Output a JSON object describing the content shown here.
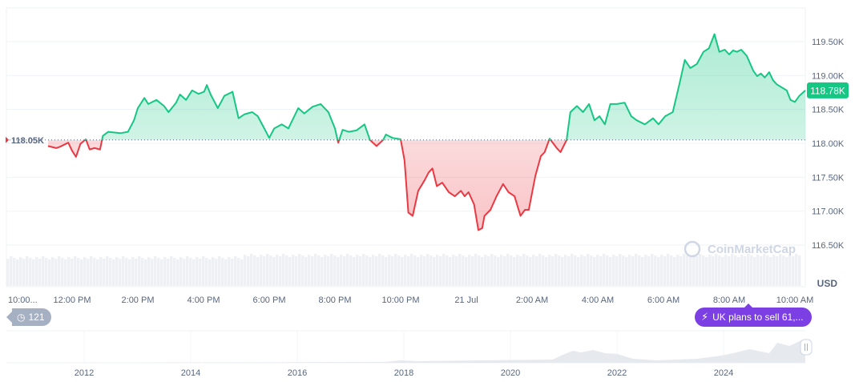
{
  "chart_data": {
    "type": "line",
    "currency": "USD",
    "baseline_label": "118.05K",
    "baseline": 118.05,
    "current_price_label": "118.78K",
    "y_ticks": [
      "119.50K",
      "119.00K",
      "118.50K",
      "118.00K",
      "117.50K",
      "117.00K",
      "116.50K"
    ],
    "y_tick_values": [
      119.5,
      119.0,
      118.5,
      118.0,
      117.5,
      117.0,
      116.5
    ],
    "x_ticks": [
      "10:00...",
      "12:00 PM",
      "2:00 PM",
      "4:00 PM",
      "6:00 PM",
      "8:00 PM",
      "10:00 PM",
      "21 Jul",
      "2:00 AM",
      "4:00 AM",
      "6:00 AM",
      "8:00 AM",
      "10:00 AM"
    ],
    "x_tick_times": [
      "10:00",
      "12:00",
      "14:00",
      "16:00",
      "18:00",
      "20:00",
      "22:00",
      "00:00",
      "02:00",
      "04:00",
      "06:00",
      "08:00",
      "10:00"
    ],
    "unit_label": "USD",
    "colors": {
      "up": "#16c784",
      "down": "#ea3943",
      "news": "#7b3fe4",
      "history": "#a6b0c3"
    },
    "series": [
      {
        "values_in": "thousands USD",
        "points": [
          [
            "11:16",
            117.96
          ],
          [
            "11:31",
            117.93
          ],
          [
            "11:38",
            117.95
          ],
          [
            "11:53",
            118.01
          ],
          [
            "12:00",
            117.89
          ],
          [
            "12:07",
            117.8
          ],
          [
            "12:15",
            117.99
          ],
          [
            "12:25",
            118.06
          ],
          [
            "12:32",
            117.91
          ],
          [
            "12:41",
            117.93
          ],
          [
            "12:51",
            117.91
          ],
          [
            "12:56",
            118.11
          ],
          [
            "13:06",
            118.17
          ],
          [
            "13:28",
            118.15
          ],
          [
            "13:42",
            118.17
          ],
          [
            "13:53",
            118.34
          ],
          [
            "14:00",
            118.52
          ],
          [
            "14:12",
            118.67
          ],
          [
            "14:19",
            118.58
          ],
          [
            "14:34",
            118.64
          ],
          [
            "14:48",
            118.55
          ],
          [
            "14:56",
            118.46
          ],
          [
            "15:10",
            118.6
          ],
          [
            "15:17",
            118.72
          ],
          [
            "15:28",
            118.64
          ],
          [
            "15:39",
            118.78
          ],
          [
            "15:51",
            118.73
          ],
          [
            "16:01",
            118.76
          ],
          [
            "16:06",
            118.86
          ],
          [
            "16:13",
            118.72
          ],
          [
            "16:26",
            118.52
          ],
          [
            "16:38",
            118.7
          ],
          [
            "16:53",
            118.76
          ],
          [
            "17:04",
            118.37
          ],
          [
            "17:15",
            118.43
          ],
          [
            "17:29",
            118.46
          ],
          [
            "17:39",
            118.4
          ],
          [
            "17:51",
            118.22
          ],
          [
            "18:00",
            118.08
          ],
          [
            "18:09",
            118.22
          ],
          [
            "18:23",
            118.28
          ],
          [
            "18:35",
            118.22
          ],
          [
            "18:53",
            118.52
          ],
          [
            "19:04",
            118.44
          ],
          [
            "19:19",
            118.54
          ],
          [
            "19:34",
            118.58
          ],
          [
            "19:48",
            118.46
          ],
          [
            "20:00",
            118.22
          ],
          [
            "20:06",
            118.01
          ],
          [
            "20:14",
            118.2
          ],
          [
            "20:25",
            118.17
          ],
          [
            "20:39",
            118.19
          ],
          [
            "20:54",
            118.28
          ],
          [
            "21:04",
            118.05
          ],
          [
            "21:16",
            117.96
          ],
          [
            "21:28",
            118.05
          ],
          [
            "21:33",
            118.13
          ],
          [
            "21:45",
            118.08
          ],
          [
            "22:00",
            118.06
          ],
          [
            "22:07",
            117.75
          ],
          [
            "22:14",
            116.98
          ],
          [
            "22:22",
            116.93
          ],
          [
            "22:32",
            117.3
          ],
          [
            "22:44",
            117.46
          ],
          [
            "22:51",
            117.57
          ],
          [
            "22:58",
            117.63
          ],
          [
            "23:06",
            117.37
          ],
          [
            "23:16",
            117.42
          ],
          [
            "23:28",
            117.28
          ],
          [
            "23:39",
            117.22
          ],
          [
            "23:50",
            117.3
          ],
          [
            "23:57",
            117.22
          ],
          [
            "00:04",
            117.28
          ],
          [
            "00:14",
            117.1
          ],
          [
            "00:22",
            116.72
          ],
          [
            "00:29",
            116.75
          ],
          [
            "00:33",
            116.93
          ],
          [
            "00:44",
            117.02
          ],
          [
            "00:55",
            117.22
          ],
          [
            "01:07",
            117.4
          ],
          [
            "01:17",
            117.28
          ],
          [
            "01:28",
            117.22
          ],
          [
            "01:39",
            116.93
          ],
          [
            "01:47",
            117.02
          ],
          [
            "01:54",
            117.02
          ],
          [
            "02:06",
            117.52
          ],
          [
            "02:16",
            117.81
          ],
          [
            "02:23",
            117.87
          ],
          [
            "02:32",
            118.07
          ],
          [
            "02:45",
            117.93
          ],
          [
            "02:52",
            117.87
          ],
          [
            "03:03",
            118.05
          ],
          [
            "03:10",
            118.46
          ],
          [
            "03:22",
            118.55
          ],
          [
            "03:33",
            118.46
          ],
          [
            "03:44",
            118.58
          ],
          [
            "03:54",
            118.34
          ],
          [
            "04:03",
            118.4
          ],
          [
            "04:13",
            118.28
          ],
          [
            "04:23",
            118.58
          ],
          [
            "04:35",
            118.58
          ],
          [
            "04:49",
            118.6
          ],
          [
            "05:01",
            118.4
          ],
          [
            "05:11",
            118.34
          ],
          [
            "05:26",
            118.28
          ],
          [
            "05:41",
            118.37
          ],
          [
            "05:51",
            118.28
          ],
          [
            "06:03",
            118.4
          ],
          [
            "06:17",
            118.46
          ],
          [
            "06:29",
            118.87
          ],
          [
            "06:39",
            119.23
          ],
          [
            "06:49",
            119.11
          ],
          [
            "07:01",
            119.17
          ],
          [
            "07:13",
            119.35
          ],
          [
            "07:23",
            119.4
          ],
          [
            "07:33",
            119.61
          ],
          [
            "07:42",
            119.35
          ],
          [
            "07:52",
            119.38
          ],
          [
            "08:00",
            119.31
          ],
          [
            "08:07",
            119.37
          ],
          [
            "08:14",
            119.35
          ],
          [
            "08:22",
            119.38
          ],
          [
            "08:32",
            119.29
          ],
          [
            "08:44",
            119.07
          ],
          [
            "08:51",
            118.99
          ],
          [
            "08:58",
            119.03
          ],
          [
            "09:05",
            118.97
          ],
          [
            "09:13",
            119.05
          ],
          [
            "09:20",
            118.93
          ],
          [
            "09:27",
            118.87
          ],
          [
            "09:39",
            118.81
          ],
          [
            "09:45",
            118.78
          ],
          [
            "09:52",
            118.64
          ],
          [
            "10:00",
            118.61
          ],
          [
            "10:08",
            118.7
          ],
          [
            "10:19",
            118.78
          ]
        ]
      }
    ],
    "watermark": "CoinMarketCap",
    "navigator": {
      "year_labels": [
        "2012",
        "2014",
        "2016",
        "2018",
        "2020",
        "2022",
        "2024"
      ]
    }
  },
  "badges": {
    "history_count": "121",
    "news_headline": "UK plans to sell 61,..."
  }
}
